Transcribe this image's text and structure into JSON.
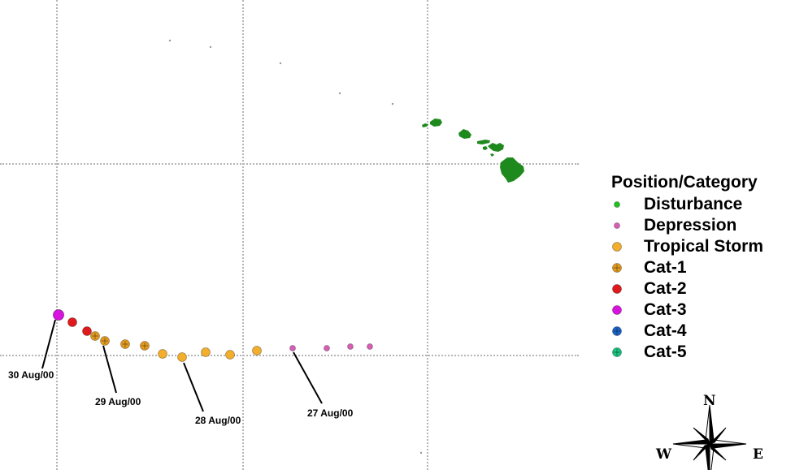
{
  "map": {
    "track_points": [
      {
        "category": "depression"
      },
      {
        "category": "depression"
      },
      {
        "category": "depression"
      },
      {
        "category": "depression"
      },
      {
        "category": "tropical_storm"
      },
      {
        "category": "tropical_storm"
      },
      {
        "category": "tropical_storm"
      },
      {
        "category": "tropical_storm"
      },
      {
        "category": "tropical_storm"
      },
      {
        "category": "cat1"
      },
      {
        "category": "cat1"
      },
      {
        "category": "cat1"
      },
      {
        "category": "cat1"
      },
      {
        "category": "cat2"
      },
      {
        "category": "cat2"
      },
      {
        "category": "cat3"
      },
      {
        "category": "cat3"
      }
    ],
    "date_labels": {
      "aug27": "27 Aug/00",
      "aug28": "28 Aug/00",
      "aug29": "29 Aug/00",
      "aug30": "30 Aug/00"
    },
    "land_color": "#1e8a1e"
  },
  "legend": {
    "title": "Position/Category",
    "items": [
      {
        "label": "Disturbance",
        "color": "#1fc21f",
        "style": "small"
      },
      {
        "label": "Depression",
        "color": "#d65fb5",
        "style": "small"
      },
      {
        "label": "Tropical Storm",
        "color": "#f2ae2c",
        "style": "plain"
      },
      {
        "label": "Cat-1",
        "color": "#e39a1f",
        "style": "cross"
      },
      {
        "label": "Cat-2",
        "color": "#e0191c",
        "style": "plain"
      },
      {
        "label": "Cat-3",
        "color": "#d913df",
        "style": "plain"
      },
      {
        "label": "Cat-4",
        "color": "#1c63c8",
        "style": "cross"
      },
      {
        "label": "Cat-5",
        "color": "#19c47f",
        "style": "cross"
      }
    ]
  },
  "compass": {
    "north": "N",
    "west": "W",
    "east": "E"
  }
}
